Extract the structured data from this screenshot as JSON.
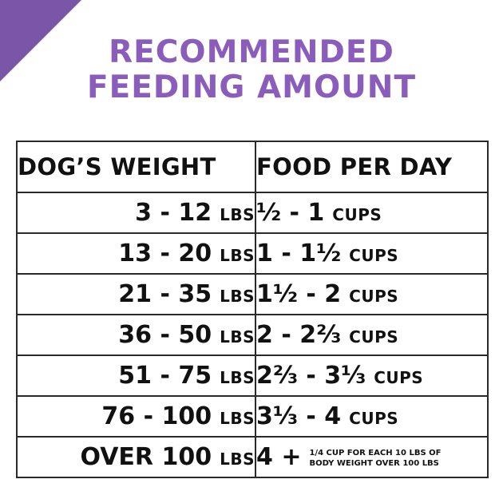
{
  "title": {
    "line1": "RECOMMENDED",
    "line2": "FEEDING AMOUNT"
  },
  "colors": {
    "accent": "#8a5cbb",
    "corner": "#7b55a7",
    "text": "#111111",
    "border": "#2a2a2a"
  },
  "table": {
    "headers": [
      "DOG’S WEIGHT",
      "FOOD PER DAY"
    ],
    "rows": [
      {
        "weight": "3 - 12",
        "weight_unit": "LBS",
        "food": "½ - 1",
        "food_unit": "CUPS"
      },
      {
        "weight": "13 - 20",
        "weight_unit": "LBS",
        "food": "1 - 1½",
        "food_unit": "CUPS"
      },
      {
        "weight": "21 - 35",
        "weight_unit": "LBS",
        "food": "1½ - 2",
        "food_unit": "CUPS"
      },
      {
        "weight": "36 - 50",
        "weight_unit": "LBS",
        "food": "2 - 2⅔",
        "food_unit": "CUPS"
      },
      {
        "weight": "51 - 75",
        "weight_unit": "LBS",
        "food": "2⅔ - 3⅓",
        "food_unit": "CUPS"
      },
      {
        "weight": "76 - 100",
        "weight_unit": "LBS",
        "food": "3⅓ - 4",
        "food_unit": "CUPS"
      },
      {
        "weight": "OVER 100",
        "weight_unit": "LBS",
        "food": "4 +",
        "food_unit": "",
        "food_note": "1/4 CUP FOR EACH 10 LBS OF BODY WEIGHT OVER 100 LBS"
      }
    ]
  }
}
